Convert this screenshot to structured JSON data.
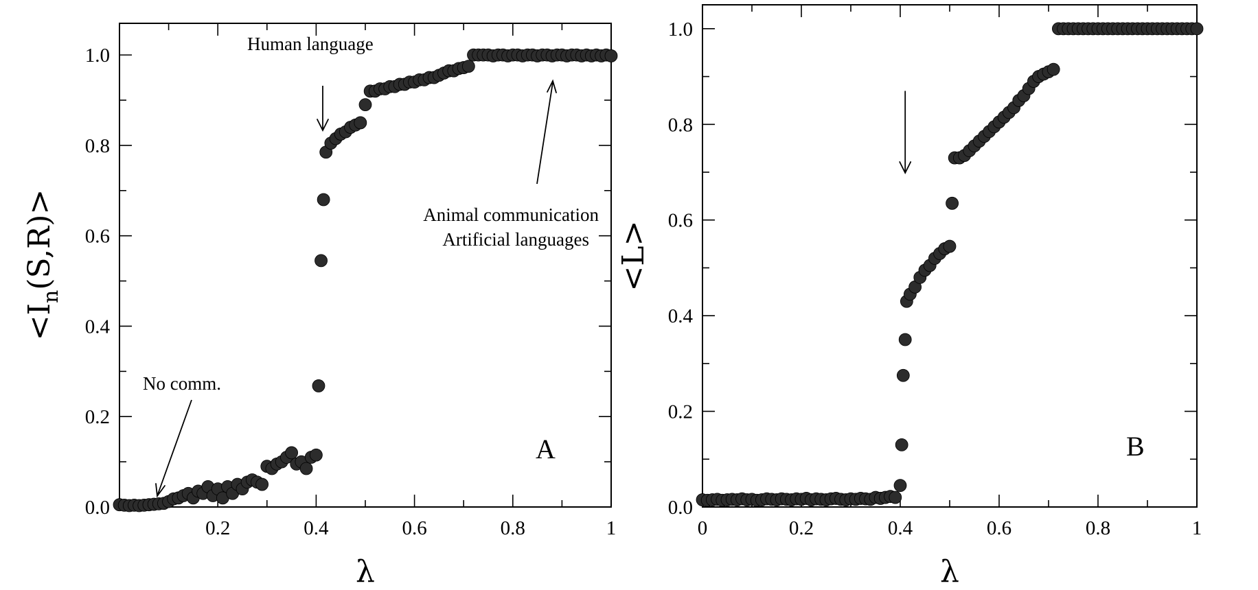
{
  "chart_data": [
    {
      "type": "scatter",
      "panel_label": "A",
      "xlabel": "λ",
      "ylabel": "<I",
      "ylabel_sub": "n",
      "ylabel_rest": "(S,R)>",
      "xlim": [
        0,
        1
      ],
      "ylim": [
        0,
        1.07
      ],
      "xticks": [
        0.2,
        0.4,
        0.6,
        0.8,
        1
      ],
      "xtick_labels": [
        "0.2",
        "0.4",
        "0.6",
        "0.8",
        "1"
      ],
      "yticks": [
        0,
        0.2,
        0.4,
        0.6,
        0.8,
        1.0
      ],
      "ytick_labels": [
        "0.0",
        "0.2",
        "0.4",
        "0.6",
        "0.8",
        "1.0"
      ],
      "annotations": [
        {
          "text": "Human language",
          "x": 0.415,
          "y": 0.82
        },
        {
          "text": "No comm.",
          "x": 0.08,
          "y": 0.03
        },
        {
          "text": "Animal communication",
          "x": 0.89,
          "y": 0.95
        },
        {
          "text": "Artificial languages",
          "x": 0.89,
          "y": 0.95
        }
      ],
      "series": [
        {
          "x": [
            0.0,
            0.01,
            0.02,
            0.03,
            0.04,
            0.05,
            0.06,
            0.07,
            0.08,
            0.09,
            0.1,
            0.11,
            0.12,
            0.13,
            0.14,
            0.15,
            0.16,
            0.17,
            0.18,
            0.19,
            0.2,
            0.21,
            0.22,
            0.23,
            0.24,
            0.25,
            0.26,
            0.27,
            0.28,
            0.29,
            0.3,
            0.31,
            0.32,
            0.33,
            0.34,
            0.35,
            0.36,
            0.37,
            0.38,
            0.39,
            0.4,
            0.405,
            0.41,
            0.415,
            0.42,
            0.43,
            0.44,
            0.45,
            0.46,
            0.47,
            0.48,
            0.49,
            0.5,
            0.51,
            0.52,
            0.53,
            0.54,
            0.55,
            0.56,
            0.57,
            0.58,
            0.59,
            0.6,
            0.61,
            0.62,
            0.63,
            0.64,
            0.65,
            0.66,
            0.67,
            0.68,
            0.69,
            0.7,
            0.71,
            0.72,
            0.73,
            0.74,
            0.75,
            0.76,
            0.77,
            0.78,
            0.79,
            0.8,
            0.81,
            0.82,
            0.83,
            0.84,
            0.85,
            0.86,
            0.87,
            0.88,
            0.89,
            0.9,
            0.91,
            0.92,
            0.93,
            0.94,
            0.95,
            0.96,
            0.97,
            0.98,
            0.99,
            1.0
          ],
          "y": [
            0.005,
            0.004,
            0.003,
            0.004,
            0.003,
            0.004,
            0.005,
            0.006,
            0.007,
            0.008,
            0.012,
            0.018,
            0.02,
            0.025,
            0.03,
            0.02,
            0.035,
            0.03,
            0.045,
            0.025,
            0.04,
            0.02,
            0.045,
            0.03,
            0.05,
            0.04,
            0.055,
            0.06,
            0.055,
            0.05,
            0.09,
            0.085,
            0.095,
            0.1,
            0.11,
            0.12,
            0.095,
            0.1,
            0.085,
            0.11,
            0.115,
            0.268,
            0.545,
            0.68,
            0.785,
            0.805,
            0.815,
            0.825,
            0.83,
            0.84,
            0.845,
            0.85,
            0.89,
            0.92,
            0.92,
            0.925,
            0.925,
            0.93,
            0.93,
            0.935,
            0.935,
            0.94,
            0.94,
            0.945,
            0.945,
            0.95,
            0.95,
            0.955,
            0.96,
            0.965,
            0.965,
            0.97,
            0.972,
            0.975,
            1.0,
            1.0,
            1.0,
            1.0,
            0.998,
            1.0,
            1.0,
            0.998,
            1.0,
            1.0,
            0.998,
            1.0,
            1.0,
            0.998,
            1.0,
            1.0,
            0.998,
            1.0,
            1.0,
            0.998,
            1.0,
            1.0,
            0.998,
            1.0,
            0.998,
            1.0,
            0.998,
            1.0,
            0.998
          ]
        }
      ]
    },
    {
      "type": "scatter",
      "panel_label": "B",
      "xlabel": "λ",
      "ylabel": "<L>",
      "xlim": [
        0,
        1
      ],
      "ylim": [
        0,
        1.05
      ],
      "xticks": [
        0,
        0.2,
        0.4,
        0.6,
        0.8,
        1
      ],
      "xtick_labels": [
        "0",
        "0.2",
        "0.4",
        "0.6",
        "0.8",
        "1"
      ],
      "yticks": [
        0,
        0.2,
        0.4,
        0.6,
        0.8,
        1.0
      ],
      "ytick_labels": [
        "0.0",
        "0.2",
        "0.4",
        "0.6",
        "0.8",
        "1.0"
      ],
      "arrow": {
        "x": 0.41,
        "y_from": 0.87,
        "y_to": 0.7
      },
      "series": [
        {
          "x": [
            0.0,
            0.01,
            0.02,
            0.03,
            0.04,
            0.05,
            0.06,
            0.07,
            0.08,
            0.09,
            0.1,
            0.11,
            0.12,
            0.13,
            0.14,
            0.15,
            0.16,
            0.17,
            0.18,
            0.19,
            0.2,
            0.21,
            0.22,
            0.23,
            0.24,
            0.25,
            0.26,
            0.27,
            0.28,
            0.29,
            0.3,
            0.31,
            0.32,
            0.33,
            0.34,
            0.35,
            0.36,
            0.37,
            0.38,
            0.39,
            0.4,
            0.403,
            0.406,
            0.41,
            0.413,
            0.42,
            0.43,
            0.44,
            0.45,
            0.46,
            0.47,
            0.48,
            0.49,
            0.5,
            0.505,
            0.51,
            0.52,
            0.53,
            0.54,
            0.55,
            0.56,
            0.57,
            0.58,
            0.59,
            0.6,
            0.61,
            0.62,
            0.63,
            0.64,
            0.65,
            0.66,
            0.67,
            0.68,
            0.69,
            0.7,
            0.71,
            0.72,
            0.73,
            0.74,
            0.75,
            0.76,
            0.77,
            0.78,
            0.79,
            0.8,
            0.81,
            0.82,
            0.83,
            0.84,
            0.85,
            0.86,
            0.87,
            0.88,
            0.89,
            0.9,
            0.91,
            0.92,
            0.93,
            0.94,
            0.95,
            0.96,
            0.97,
            0.98,
            0.99,
            1.0
          ],
          "y": [
            0.015,
            0.014,
            0.015,
            0.016,
            0.014,
            0.015,
            0.016,
            0.015,
            0.017,
            0.015,
            0.016,
            0.014,
            0.015,
            0.017,
            0.016,
            0.015,
            0.017,
            0.016,
            0.015,
            0.017,
            0.016,
            0.018,
            0.015,
            0.017,
            0.016,
            0.015,
            0.017,
            0.018,
            0.016,
            0.015,
            0.017,
            0.016,
            0.018,
            0.017,
            0.016,
            0.02,
            0.018,
            0.02,
            0.022,
            0.02,
            0.045,
            0.13,
            0.275,
            0.35,
            0.43,
            0.445,
            0.46,
            0.48,
            0.495,
            0.505,
            0.52,
            0.53,
            0.54,
            0.545,
            0.635,
            0.73,
            0.73,
            0.735,
            0.745,
            0.755,
            0.765,
            0.775,
            0.785,
            0.795,
            0.805,
            0.815,
            0.825,
            0.835,
            0.85,
            0.86,
            0.875,
            0.89,
            0.9,
            0.905,
            0.91,
            0.915,
            1.0,
            1.0,
            1.0,
            1.0,
            1.0,
            1.0,
            1.0,
            1.0,
            1.0,
            1.0,
            1.0,
            1.0,
            1.0,
            1.0,
            1.0,
            1.0,
            1.0,
            1.0,
            1.0,
            1.0,
            1.0,
            1.0,
            1.0,
            1.0,
            1.0,
            1.0,
            1.0,
            1.0,
            1.0
          ]
        }
      ]
    }
  ]
}
